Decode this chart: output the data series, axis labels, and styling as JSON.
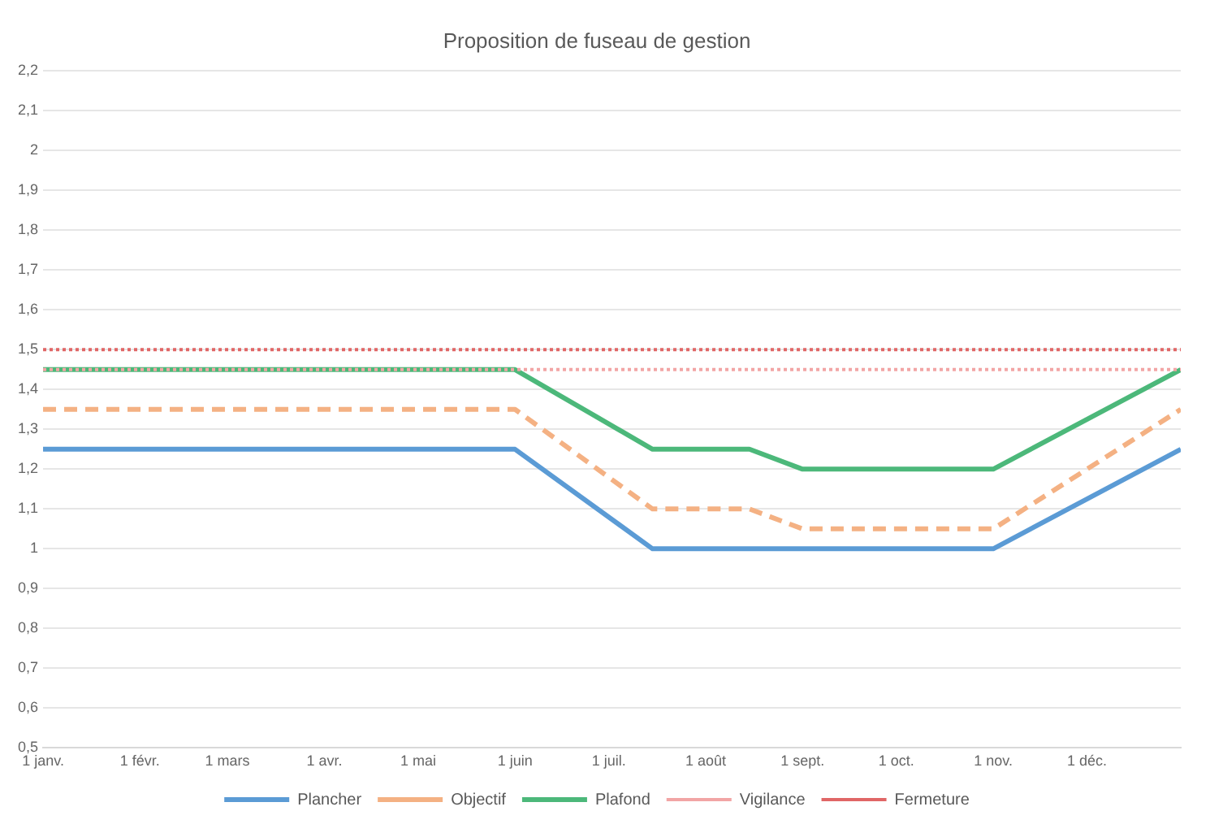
{
  "chart_data": {
    "type": "line",
    "title": "Proposition de fuseau de gestion",
    "series": [
      {
        "name": "Plancher",
        "color": "#5b9bd5",
        "line_style": "solid",
        "x": [
          "--01-01",
          "--06-01",
          "--07-15",
          "--11-01",
          "--12-31"
        ],
        "values": [
          1.25,
          1.25,
          1,
          1,
          1.25
        ]
      },
      {
        "name": "Objectif",
        "color": "#f4b183",
        "line_style": "dashed",
        "x": [
          "--01-01",
          "--06-01",
          "--07-15",
          "--08-15",
          "--09-01",
          "--11-01",
          "--12-31"
        ],
        "values": [
          1.35,
          1.35,
          1.1,
          1.1,
          1.05,
          1.05,
          1.35
        ]
      },
      {
        "name": "Plafond",
        "color": "#4cb87a",
        "line_style": "solid",
        "x": [
          "--01-01",
          "--06-01",
          "--07-15",
          "--08-15",
          "--09-01",
          "--11-01",
          "--12-31"
        ],
        "values": [
          1.45,
          1.45,
          1.25,
          1.25,
          1.2,
          1.2,
          1.45
        ]
      },
      {
        "name": "Vigilance",
        "color": "#f2a5a5",
        "line_style": "dotted",
        "x": [
          "--01-01",
          "--12-31"
        ],
        "values": [
          1.45,
          1.45
        ]
      },
      {
        "name": "Fermeture",
        "color": "#e06666",
        "line_style": "dotted",
        "x": [
          "--01-01",
          "--12-31"
        ],
        "values": [
          1.5,
          1.5
        ]
      }
    ],
    "xlim": [
      "--01-01",
      "--12-31"
    ],
    "xticks": [
      {
        "value": "--01-01",
        "label": "1 janv."
      },
      {
        "value": "--02-01",
        "label": "1 févr."
      },
      {
        "value": "--03-01",
        "label": "1 mars"
      },
      {
        "value": "--04-01",
        "label": "1 avr."
      },
      {
        "value": "--05-01",
        "label": "1 mai"
      },
      {
        "value": "--06-01",
        "label": "1 juin"
      },
      {
        "value": "--07-01",
        "label": "1 juil."
      },
      {
        "value": "--08-01",
        "label": "1 août"
      },
      {
        "value": "--09-01",
        "label": "1 sept."
      },
      {
        "value": "--10-01",
        "label": "1 oct."
      },
      {
        "value": "--11-01",
        "label": "1 nov."
      },
      {
        "value": "--12-01",
        "label": "1 déc."
      }
    ],
    "ylim": [
      0.5,
      2.2
    ],
    "yticks": [
      {
        "value": 0.5,
        "label": "0,5"
      },
      {
        "value": 0.6,
        "label": "0,6"
      },
      {
        "value": 0.7,
        "label": "0,7"
      },
      {
        "value": 0.8,
        "label": "0,8"
      },
      {
        "value": 0.9,
        "label": "0,9"
      },
      1,
      {
        "value": 1.1,
        "label": "1,1"
      },
      {
        "value": 1.2,
        "label": "1,2"
      },
      {
        "value": 1.3,
        "label": "1,3"
      },
      {
        "value": 1.4,
        "label": "1,4"
      },
      {
        "value": 1.5,
        "label": "1,5"
      },
      {
        "value": 1.6,
        "label": "1,6"
      },
      {
        "value": 1.7,
        "label": "1,7"
      },
      {
        "value": 1.8,
        "label": "1,8"
      },
      {
        "value": 1.9,
        "label": "1,9"
      },
      2,
      {
        "value": 2.1,
        "label": "2,1"
      },
      {
        "value": 2.2,
        "label": "2,2"
      }
    ],
    "grid": "y",
    "legend": "bottom",
    "marker": "none"
  }
}
